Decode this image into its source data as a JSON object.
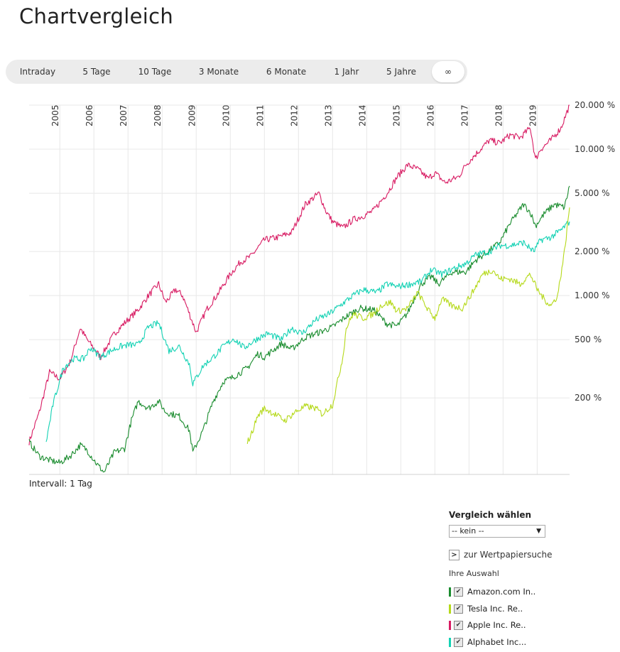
{
  "page": {
    "title": "Chartvergleich"
  },
  "range_tabs": [
    {
      "label": "Intraday",
      "active": false
    },
    {
      "label": "5 Tage",
      "active": false
    },
    {
      "label": "10 Tage",
      "active": false
    },
    {
      "label": "3 Monate",
      "active": false
    },
    {
      "label": "6 Monate",
      "active": false
    },
    {
      "label": "1 Jahr",
      "active": false
    },
    {
      "label": "5 Jahre",
      "active": false
    },
    {
      "label": "∞",
      "active": true
    }
  ],
  "interval_label": "Intervall: 1 Tag",
  "compare": {
    "title": "Vergleich wählen",
    "select_value": "-- kein --",
    "search_link": "zur Wertpapiersuche",
    "selection_label": "Ihre Auswahl",
    "items": [
      {
        "label": "Amazon.com In..",
        "color": "#1a8c2e",
        "checked": true
      },
      {
        "label": "Tesla Inc. Re..",
        "color": "#b5d91a",
        "checked": true
      },
      {
        "label": "Apple Inc. Re..",
        "color": "#d81c63",
        "checked": true
      },
      {
        "label": "Alphabet Inc...",
        "color": "#14d2b4",
        "checked": true
      }
    ]
  },
  "chart_data": {
    "type": "line",
    "y_scale": "log",
    "x_range": [
      2004.1,
      2019.95
    ],
    "ylim": [
      60,
      20000
    ],
    "x_tick_labels": [
      "2005",
      "2006",
      "2007",
      "2008",
      "2009",
      "2010",
      "2011",
      "2012",
      "2013",
      "2014",
      "2015",
      "2016",
      "2017",
      "2018",
      "2019"
    ],
    "y_tick_labels": [
      {
        "value": 20000,
        "label": "20.000 %"
      },
      {
        "value": 10000,
        "label": "10.000 %"
      },
      {
        "value": 5000,
        "label": "5.000 %"
      },
      {
        "value": 2000,
        "label": "2.000 %"
      },
      {
        "value": 1000,
        "label": "1.000 %"
      },
      {
        "value": 500,
        "label": "500 %"
      },
      {
        "value": 200,
        "label": "200 %"
      }
    ],
    "grid": true,
    "series": [
      {
        "name": "Apple Inc. Re..",
        "color": "#d81c63",
        "x": [
          2004.1,
          2004.4,
          2004.7,
          2005.0,
          2005.3,
          2005.6,
          2005.8,
          2006.2,
          2006.6,
          2006.9,
          2007.3,
          2007.6,
          2007.9,
          2008.1,
          2008.4,
          2008.6,
          2008.9,
          2009.0,
          2009.3,
          2009.6,
          2010.0,
          2010.3,
          2010.6,
          2011.0,
          2011.4,
          2011.8,
          2012.2,
          2012.6,
          2012.8,
          2013.0,
          2013.3,
          2013.6,
          2013.9,
          2014.2,
          2014.6,
          2014.9,
          2015.2,
          2015.5,
          2015.8,
          2016.0,
          2016.3,
          2016.7,
          2016.9,
          2017.3,
          2017.6,
          2017.9,
          2018.2,
          2018.5,
          2018.8,
          2018.95,
          2019.1,
          2019.4,
          2019.7,
          2019.95
        ],
        "y": [
          100,
          160,
          300,
          270,
          350,
          600,
          500,
          380,
          550,
          650,
          800,
          1000,
          1200,
          900,
          1100,
          1000,
          650,
          560,
          800,
          1000,
          1400,
          1700,
          1850,
          2400,
          2500,
          2700,
          4200,
          5000,
          3800,
          3200,
          2900,
          3300,
          3500,
          3800,
          5000,
          6500,
          7800,
          7300,
          6300,
          6900,
          5900,
          6500,
          7800,
          9800,
          11500,
          11000,
          12500,
          12000,
          14000,
          8500,
          10000,
          11500,
          14000,
          20000
        ]
      },
      {
        "name": "Amazon.com In..",
        "color": "#1a8c2e",
        "x": [
          2004.1,
          2004.4,
          2004.7,
          2005.0,
          2005.3,
          2005.6,
          2005.8,
          2006.1,
          2006.3,
          2006.6,
          2006.9,
          2007.1,
          2007.3,
          2007.6,
          2007.9,
          2008.1,
          2008.5,
          2008.8,
          2008.9,
          2009.2,
          2009.5,
          2009.8,
          2010.0,
          2010.5,
          2010.8,
          2011.0,
          2011.5,
          2011.8,
          2012.2,
          2012.6,
          2013.0,
          2013.4,
          2013.8,
          2014.2,
          2014.6,
          2014.9,
          2015.2,
          2015.6,
          2015.9,
          2016.1,
          2016.5,
          2016.9,
          2017.2,
          2017.5,
          2017.9,
          2018.2,
          2018.6,
          2018.8,
          2018.95,
          2019.2,
          2019.5,
          2019.8,
          2019.95
        ],
        "y": [
          100,
          80,
          75,
          72,
          80,
          95,
          88,
          70,
          62,
          85,
          90,
          140,
          190,
          170,
          190,
          160,
          150,
          120,
          85,
          120,
          190,
          260,
          270,
          320,
          400,
          380,
          470,
          430,
          520,
          560,
          610,
          720,
          820,
          800,
          640,
          620,
          760,
          1200,
          1350,
          1200,
          1450,
          1450,
          1750,
          1950,
          2300,
          3100,
          4200,
          3700,
          3000,
          3600,
          4200,
          4000,
          5600
        ]
      },
      {
        "name": "Alphabet Inc...",
        "color": "#14d2b4",
        "x": [
          2004.6,
          2004.8,
          2005.1,
          2005.4,
          2005.7,
          2005.9,
          2006.2,
          2006.5,
          2006.8,
          2007.0,
          2007.3,
          2007.6,
          2007.9,
          2008.2,
          2008.5,
          2008.8,
          2008.9,
          2009.2,
          2009.5,
          2009.8,
          2010.1,
          2010.4,
          2010.8,
          2011.1,
          2011.5,
          2011.8,
          2012.1,
          2012.5,
          2012.9,
          2013.2,
          2013.6,
          2013.9,
          2014.3,
          2014.6,
          2014.9,
          2015.3,
          2015.6,
          2015.9,
          2016.2,
          2016.6,
          2016.9,
          2017.2,
          2017.6,
          2017.9,
          2018.2,
          2018.6,
          2018.9,
          2019.1,
          2019.4,
          2019.7,
          2019.95
        ],
        "y": [
          100,
          180,
          320,
          370,
          370,
          440,
          380,
          420,
          450,
          460,
          460,
          610,
          650,
          420,
          450,
          340,
          250,
          330,
          380,
          450,
          510,
          440,
          510,
          550,
          500,
          600,
          550,
          680,
          750,
          850,
          1000,
          1100,
          1050,
          1200,
          1150,
          1200,
          1250,
          1500,
          1400,
          1550,
          1650,
          1900,
          2000,
          2200,
          2200,
          2300,
          2000,
          2400,
          2500,
          2800,
          3200
        ]
      },
      {
        "name": "Tesla Inc. Re..",
        "color": "#b5d91a",
        "x": [
          2010.5,
          2010.6,
          2010.8,
          2011.0,
          2011.3,
          2011.6,
          2011.9,
          2012.2,
          2012.5,
          2012.7,
          2013.0,
          2013.3,
          2013.4,
          2013.6,
          2013.9,
          2014.2,
          2014.4,
          2014.7,
          2014.9,
          2015.2,
          2015.5,
          2015.8,
          2016.0,
          2016.2,
          2016.5,
          2016.8,
          2017.1,
          2017.4,
          2017.7,
          2017.9,
          2018.2,
          2018.5,
          2018.8,
          2019.0,
          2019.2,
          2019.4,
          2019.6,
          2019.8,
          2019.95
        ],
        "y": [
          100,
          110,
          150,
          170,
          155,
          140,
          160,
          175,
          170,
          155,
          180,
          380,
          600,
          750,
          700,
          750,
          850,
          900,
          780,
          820,
          1050,
          800,
          700,
          950,
          850,
          820,
          1050,
          1400,
          1500,
          1300,
          1300,
          1200,
          1400,
          1100,
          950,
          850,
          1000,
          2000,
          4000
        ]
      }
    ]
  }
}
